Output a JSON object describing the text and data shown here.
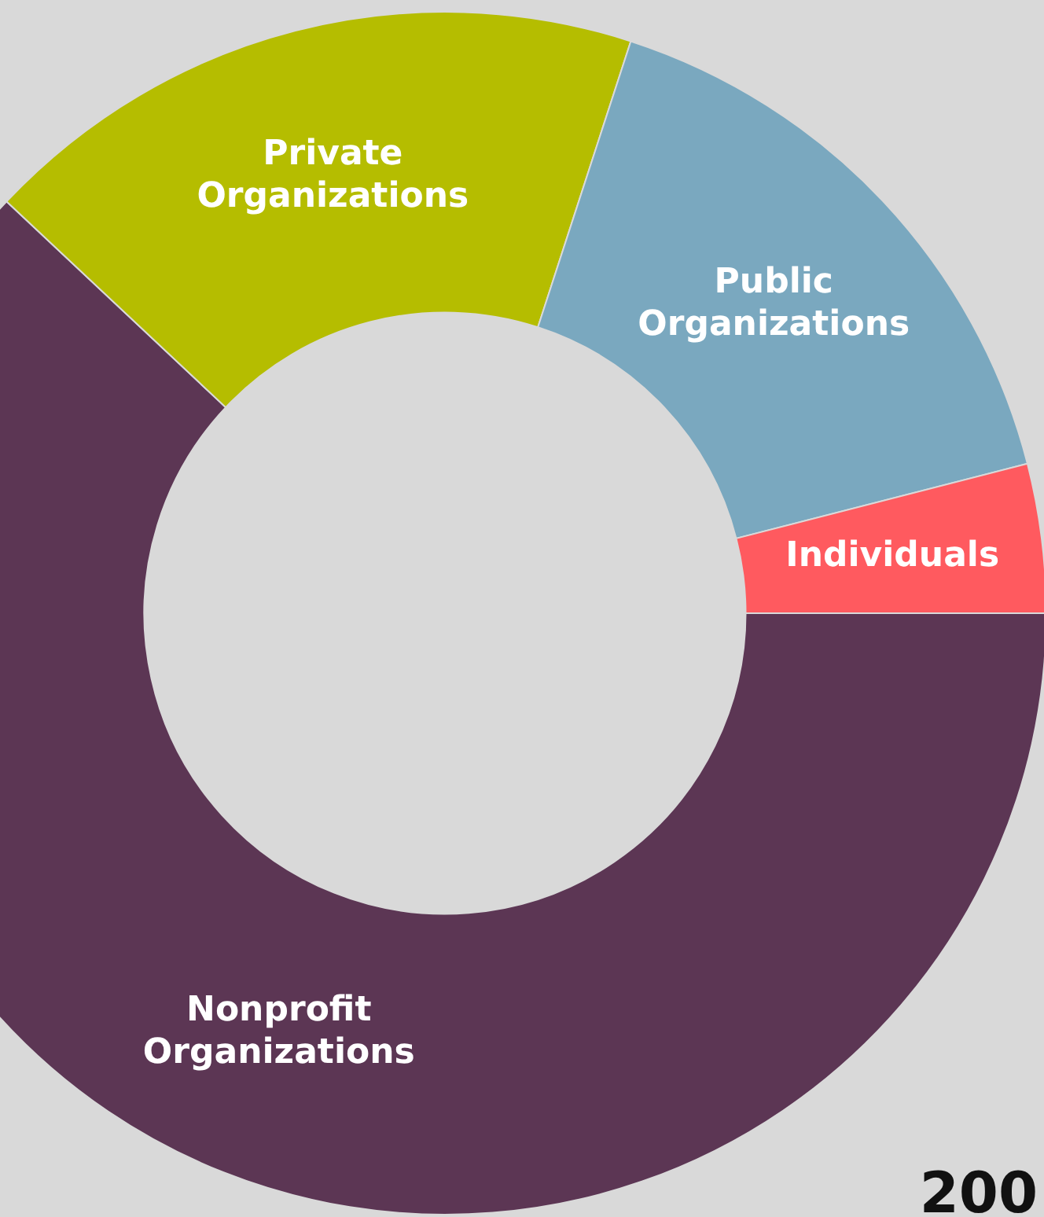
{
  "chart_data": {
    "type": "donut",
    "categories": [
      "Nonprofit Organizations",
      "Private Organizations",
      "Public Organizations",
      "Individuals"
    ],
    "values": [
      62,
      18,
      16,
      4
    ],
    "colors": [
      "#5c3654",
      "#b5bd00",
      "#7aa8bf",
      "#ff5a5f"
    ],
    "annotations": [
      "200"
    ],
    "legend": false
  }
}
